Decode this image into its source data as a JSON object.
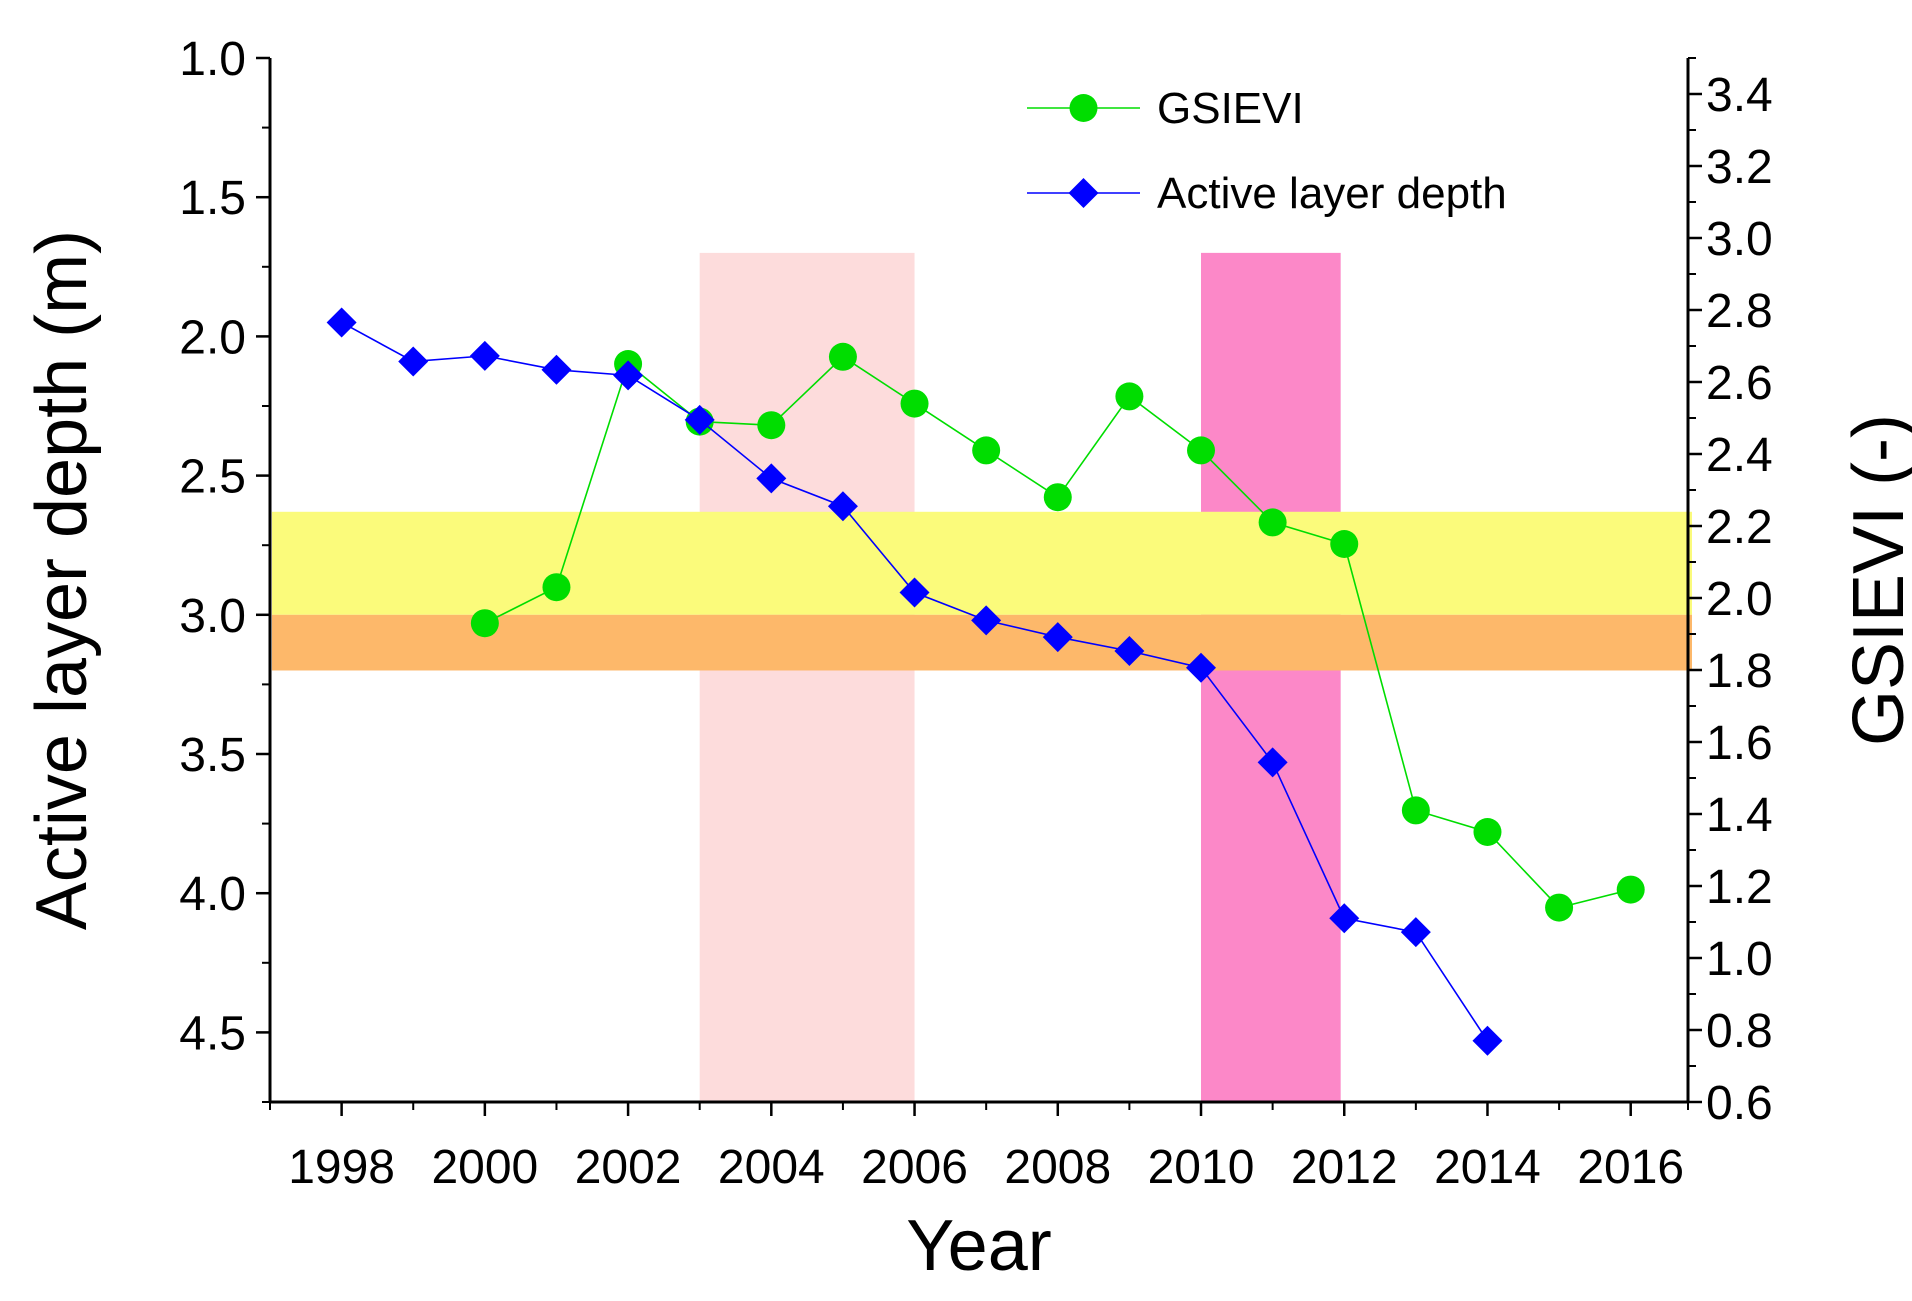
{
  "chart_data": {
    "type": "line",
    "x_axis": {
      "label": "Year",
      "range": [
        1997,
        2016.8
      ],
      "ticks": [
        1998,
        2000,
        2002,
        2004,
        2006,
        2008,
        2010,
        2012,
        2014,
        2016
      ],
      "tick_labels": [
        "1998",
        "2000",
        "2002",
        "2004",
        "2006",
        "2008",
        "2010",
        "2012",
        "2014",
        "2016"
      ]
    },
    "y_left": {
      "label": "Active layer depth (m)",
      "range": [
        1.0,
        4.75
      ],
      "inverted": true,
      "ticks": [
        1.0,
        1.5,
        2.0,
        2.5,
        3.0,
        3.5,
        4.0,
        4.5
      ],
      "tick_labels": [
        "1.0",
        "1.5",
        "2.0",
        "2.5",
        "3.0",
        "3.5",
        "4.0",
        "4.5"
      ]
    },
    "y_right": {
      "label": "GSIEVI (-)",
      "range": [
        0.6,
        3.5
      ],
      "ticks": [
        0.6,
        0.8,
        1.0,
        1.2,
        1.4,
        1.6,
        1.8,
        2.0,
        2.2,
        2.4,
        2.6,
        2.8,
        3.0,
        3.2,
        3.4
      ],
      "tick_labels": [
        "0.6",
        "0.8",
        "1.0",
        "1.2",
        "1.4",
        "1.6",
        "1.8",
        "2.0",
        "2.2",
        "2.4",
        "2.6",
        "2.8",
        "3.0",
        "3.2",
        "3.4"
      ]
    },
    "series": [
      {
        "name": "GSIEVI",
        "axis": "right",
        "color": "#00dd00",
        "marker": "circle",
        "x": [
          2000,
          2001,
          2002,
          2003,
          2004,
          2005,
          2006,
          2007,
          2008,
          2009,
          2010,
          2011,
          2012,
          2013,
          2014,
          2015,
          2016
        ],
        "y": [
          1.93,
          2.03,
          2.65,
          2.49,
          2.48,
          2.67,
          2.54,
          2.41,
          2.28,
          2.56,
          2.41,
          2.21,
          2.15,
          1.41,
          1.35,
          1.14,
          1.19
        ]
      },
      {
        "name": "Active layer depth",
        "axis": "left",
        "color": "#0000ff",
        "marker": "diamond",
        "x": [
          1998,
          1999,
          2000,
          2001,
          2002,
          2003,
          2004,
          2005,
          2006,
          2007,
          2008,
          2009,
          2010,
          2011,
          2012,
          2013,
          2014
        ],
        "y": [
          1.95,
          2.09,
          2.07,
          2.12,
          2.14,
          2.3,
          2.51,
          2.61,
          2.92,
          3.02,
          3.08,
          3.13,
          3.19,
          3.53,
          4.09,
          4.14,
          4.53
        ]
      }
    ],
    "shaded_regions": [
      {
        "orientation": "vertical",
        "x_from": 2003.0,
        "x_to": 2006.0,
        "y_top": 1.7,
        "color": "#fddcdc"
      },
      {
        "orientation": "vertical",
        "x_from": 2010.0,
        "x_to": 2011.95,
        "y_top": 1.7,
        "color": "#fc88c8"
      },
      {
        "orientation": "horizontal",
        "y_from": 2.63,
        "y_to": 3.0,
        "color": "#fbfb7b"
      },
      {
        "orientation": "horizontal",
        "y_from": 3.0,
        "y_to": 3.2,
        "color": "#fdb86a"
      }
    ],
    "legend": {
      "placement": "top-right",
      "entries": [
        "GSIEVI",
        "Active layer depth"
      ]
    },
    "grid": false
  }
}
